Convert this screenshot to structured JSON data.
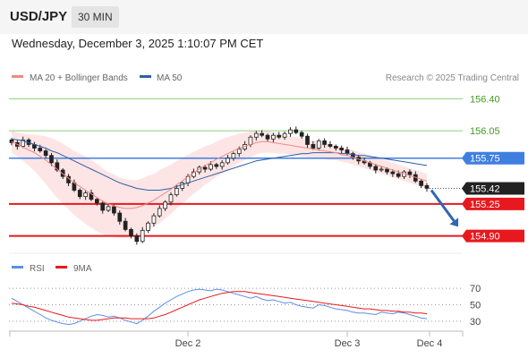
{
  "header": {
    "symbol": "USD/JPY",
    "timeframe": "30 MIN"
  },
  "datetime": "Wednesday, December 3, 2025 1:10:07 PM CET",
  "colors": {
    "ma20": "#f08a84",
    "ma50": "#2e5fa8",
    "band_fill": "#fde0e0",
    "candle": "#222222",
    "target_green": "#8fcf7a",
    "support_red": "#e8191e",
    "pivot_blue": "#3f7fe0",
    "arrow": "#2f67b0",
    "rsi": "#5b8fe3",
    "rsi_ma": "#e8191e"
  },
  "chart_data": [
    {
      "type": "candlestick",
      "legend": [
        "MA 20 + Bollinger Bands",
        "MA 50"
      ],
      "copyright": "Research © 2025 Trading Central",
      "ylim": [
        154.71,
        156.55
      ],
      "x_ticks": [
        "Dec 2",
        "Dec 3",
        "Dec 4"
      ],
      "last_price": 155.42,
      "levels": [
        {
          "value": 156.4,
          "label": "156.40",
          "kind": "target"
        },
        {
          "value": 156.05,
          "label": "156.05",
          "kind": "target"
        },
        {
          "value": 155.75,
          "label": "155.75",
          "kind": "pivot"
        },
        {
          "value": 155.25,
          "label": "155.25",
          "kind": "support"
        },
        {
          "value": 154.9,
          "label": "154.90",
          "kind": "support"
        }
      ],
      "close": [
        155.92,
        155.88,
        155.95,
        155.9,
        155.86,
        155.83,
        155.78,
        155.7,
        155.62,
        155.55,
        155.48,
        155.4,
        155.33,
        155.37,
        155.3,
        155.26,
        155.18,
        155.22,
        155.15,
        155.06,
        154.97,
        154.9,
        154.84,
        154.96,
        155.04,
        155.12,
        155.2,
        155.27,
        155.35,
        155.42,
        155.48,
        155.55,
        155.6,
        155.65,
        155.63,
        155.68,
        155.66,
        155.7,
        155.75,
        155.8,
        155.85,
        155.9,
        155.98,
        156.02,
        156.0,
        155.96,
        156.0,
        155.98,
        156.02,
        156.06,
        156.03,
        155.99,
        155.9,
        155.86,
        155.94,
        155.9,
        155.88,
        155.86,
        155.84,
        155.8,
        155.76,
        155.72,
        155.7,
        155.66,
        155.62,
        155.63,
        155.6,
        155.58,
        155.55,
        155.6,
        155.57,
        155.5,
        155.45,
        155.42
      ],
      "ma20": [
        155.93,
        155.9,
        155.87,
        155.84,
        155.81,
        155.77,
        155.73,
        155.68,
        155.63,
        155.58,
        155.53,
        155.48,
        155.44,
        155.4,
        155.36,
        155.32,
        155.28,
        155.25,
        155.23,
        155.21,
        155.2,
        155.2,
        155.21,
        155.23,
        155.26,
        155.29,
        155.33,
        155.37,
        155.41,
        155.46,
        155.5,
        155.55,
        155.59,
        155.63,
        155.67,
        155.7,
        155.74,
        155.77,
        155.8,
        155.83,
        155.86,
        155.88,
        155.9,
        155.92,
        155.93,
        155.93,
        155.92,
        155.91,
        155.9,
        155.89,
        155.88,
        155.87,
        155.86,
        155.85,
        155.84,
        155.83,
        155.82,
        155.81,
        155.79,
        155.78,
        155.76,
        155.74,
        155.72,
        155.7,
        155.68,
        155.66,
        155.64,
        155.62,
        155.6,
        155.58,
        155.56,
        155.54,
        155.52,
        155.5
      ],
      "ma50": [
        155.96,
        155.95,
        155.94,
        155.92,
        155.9,
        155.88,
        155.86,
        155.83,
        155.81,
        155.78,
        155.75,
        155.72,
        155.69,
        155.66,
        155.63,
        155.6,
        155.57,
        155.54,
        155.51,
        155.48,
        155.46,
        155.44,
        155.42,
        155.41,
        155.4,
        155.4,
        155.4,
        155.41,
        155.42,
        155.44,
        155.46,
        155.48,
        155.5,
        155.52,
        155.54,
        155.56,
        155.58,
        155.6,
        155.62,
        155.64,
        155.66,
        155.68,
        155.7,
        155.72,
        155.73,
        155.74,
        155.75,
        155.76,
        155.77,
        155.78,
        155.79,
        155.8,
        155.8,
        155.81,
        155.81,
        155.81,
        155.81,
        155.81,
        155.8,
        155.8,
        155.79,
        155.78,
        155.78,
        155.77,
        155.76,
        155.75,
        155.74,
        155.73,
        155.72,
        155.71,
        155.7,
        155.69,
        155.68,
        155.67
      ],
      "band_width": [
        0.12,
        0.13,
        0.15,
        0.17,
        0.2,
        0.23,
        0.26,
        0.29,
        0.31,
        0.33,
        0.34,
        0.35,
        0.36,
        0.37,
        0.37,
        0.37,
        0.36,
        0.35,
        0.34,
        0.33,
        0.32,
        0.31,
        0.3,
        0.3,
        0.3,
        0.29,
        0.29,
        0.28,
        0.27,
        0.26,
        0.25,
        0.24,
        0.23,
        0.22,
        0.21,
        0.2,
        0.19,
        0.19,
        0.18,
        0.17,
        0.16,
        0.15,
        0.14,
        0.13,
        0.12,
        0.12,
        0.11,
        0.11,
        0.1,
        0.1,
        0.1,
        0.1,
        0.1,
        0.09,
        0.09,
        0.09,
        0.09,
        0.08,
        0.08,
        0.08,
        0.08,
        0.08,
        0.08,
        0.08,
        0.08,
        0.08,
        0.08,
        0.08,
        0.08,
        0.08,
        0.08,
        0.08,
        0.08,
        0.08
      ],
      "forecast": [
        155.4,
        155.0
      ]
    },
    {
      "type": "line",
      "legend": [
        "RSI",
        "9MA"
      ],
      "ylim": [
        20,
        80
      ],
      "y_ticks": [
        70,
        50,
        30
      ],
      "series": [
        {
          "name": "RSI",
          "values": [
            58,
            54,
            50,
            46,
            42,
            38,
            34,
            31,
            29,
            27,
            26,
            27,
            30,
            33,
            36,
            38,
            37,
            35,
            36,
            34,
            31,
            29,
            27,
            31,
            36,
            42,
            47,
            52,
            56,
            60,
            63,
            66,
            68,
            69,
            68,
            67,
            69,
            68,
            66,
            64,
            62,
            60,
            58,
            60,
            57,
            55,
            56,
            54,
            52,
            53,
            50,
            48,
            47,
            46,
            50,
            49,
            47,
            45,
            44,
            43,
            41,
            40,
            40,
            39,
            38,
            41,
            40,
            39,
            41,
            40,
            38,
            36,
            34,
            33
          ]
        },
        {
          "name": "9MA",
          "values": [
            52,
            51,
            50,
            48,
            47,
            45,
            43,
            41,
            39,
            37,
            35,
            34,
            33,
            32,
            31,
            31,
            32,
            33,
            34,
            34,
            34,
            33,
            33,
            33,
            33,
            34,
            36,
            38,
            41,
            44,
            47,
            50,
            53,
            56,
            58,
            60,
            62,
            64,
            65,
            66,
            66,
            66,
            65,
            64,
            63,
            62,
            61,
            60,
            59,
            58,
            57,
            56,
            55,
            54,
            53,
            52,
            51,
            50,
            49,
            48,
            47,
            46,
            45,
            45,
            44,
            43,
            43,
            42,
            42,
            41,
            41,
            40,
            40,
            39
          ]
        }
      ]
    }
  ]
}
